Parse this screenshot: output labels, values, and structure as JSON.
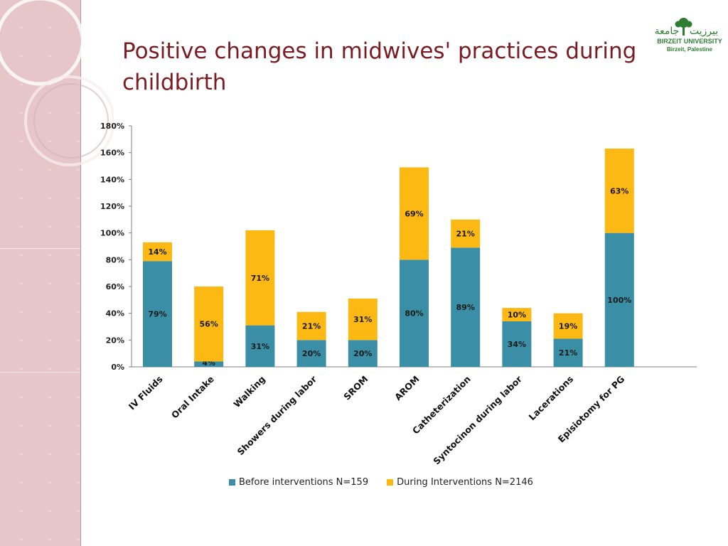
{
  "slide": {
    "title": "Positive changes in midwives' practices during childbirth"
  },
  "logo": {
    "arabic_name": "جامعة بيرزيت",
    "name": "BIRZEIT UNIVERSITY",
    "location": "Birzeit, Palestine"
  },
  "colors": {
    "background": "#ffffff",
    "sidebar": "#e7c6c9",
    "title": "#7a1c22",
    "before": "#3a8fa6",
    "during": "#fcb813",
    "logo": "#2e7d32"
  },
  "chart_data": {
    "type": "bar",
    "stacked": true,
    "categories": [
      "IV Fluids",
      "Oral Intake",
      "Walking",
      "Showers during labor",
      "SROM",
      "AROM",
      "Catheterization",
      "Syntocinon during labor",
      "Lacerations",
      "Episiotomy for PG"
    ],
    "series": [
      {
        "name": "Before interventions N=159",
        "color": "#3a8fa6",
        "values": [
          79,
          4,
          31,
          20,
          20,
          80,
          89,
          34,
          21,
          100
        ],
        "labels": [
          "79%",
          "4%",
          "31%",
          "20%",
          "20%",
          "80%",
          "89%",
          "34%",
          "21%",
          "100%"
        ]
      },
      {
        "name": "During Interventions  N=2146",
        "color": "#fcb813",
        "values": [
          14,
          56,
          71,
          21,
          31,
          69,
          21,
          10,
          19,
          63
        ],
        "labels": [
          "14%",
          "56%",
          "71%",
          "21%",
          "31%",
          "69%",
          "21%",
          "10%",
          "19%",
          "63%"
        ]
      }
    ],
    "yticks": [
      "0%",
      "20%",
      "40%",
      "60%",
      "80%",
      "100%",
      "120%",
      "140%",
      "160%",
      "180%"
    ],
    "ylim": [
      0,
      180
    ],
    "ylabel": "",
    "xlabel": "",
    "grid": false,
    "legend_position": "bottom"
  }
}
